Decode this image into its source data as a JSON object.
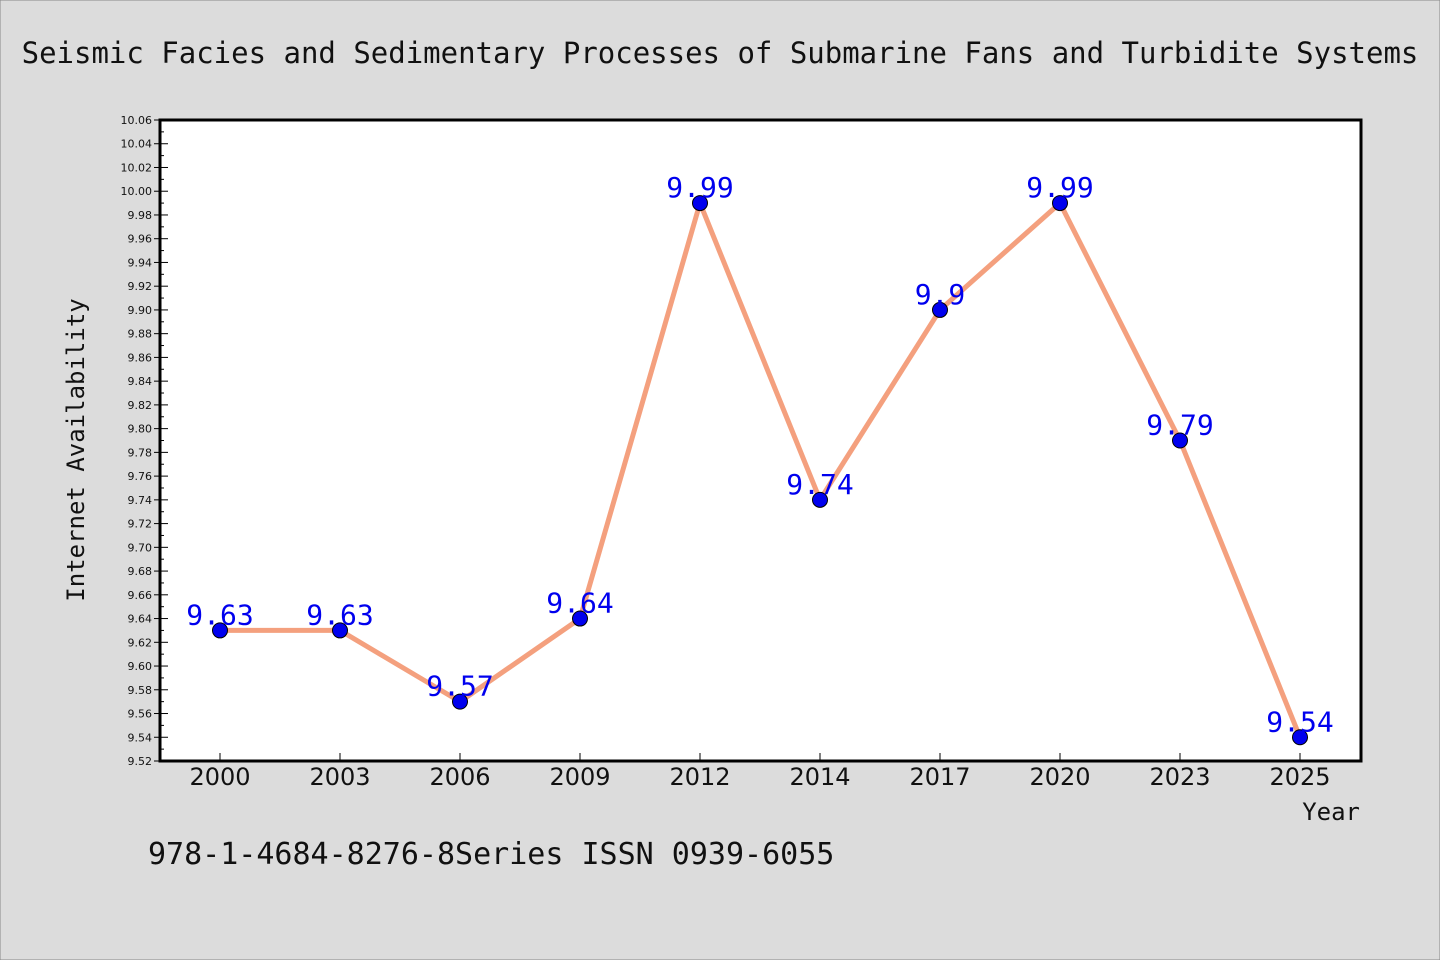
{
  "chart_data": {
    "type": "line",
    "title": "Seismic Facies and Sedimentary Processes of Submarine Fans and Turbidite Systems",
    "xlabel": "Year",
    "ylabel": "Internet Availability",
    "categories": [
      "2000",
      "2003",
      "2006",
      "2009",
      "2012",
      "2014",
      "2017",
      "2020",
      "2023",
      "2025"
    ],
    "series": [
      {
        "values": [
          9.63,
          9.63,
          9.57,
          9.64,
          9.99,
          9.74,
          9.9,
          9.99,
          9.79,
          9.54
        ],
        "data_labels": [
          "9.63",
          "9.63",
          "9.57",
          "9.64",
          "9.99",
          "9.74",
          "9.9",
          "9.99",
          "9.79",
          "9.54"
        ],
        "line_color": "#f4a07e",
        "marker_color": "#0000ee"
      }
    ],
    "ylim": [
      9.52,
      10.06
    ],
    "y_major_step": 0.02,
    "grid": false,
    "legend": "none",
    "label_color": "#0000ee",
    "background_color": "#dcdcdc",
    "plot_background_color": "#ffffff"
  },
  "footer": {
    "text": "978-1-4684-8276-8Series ISSN 0939-6055"
  }
}
